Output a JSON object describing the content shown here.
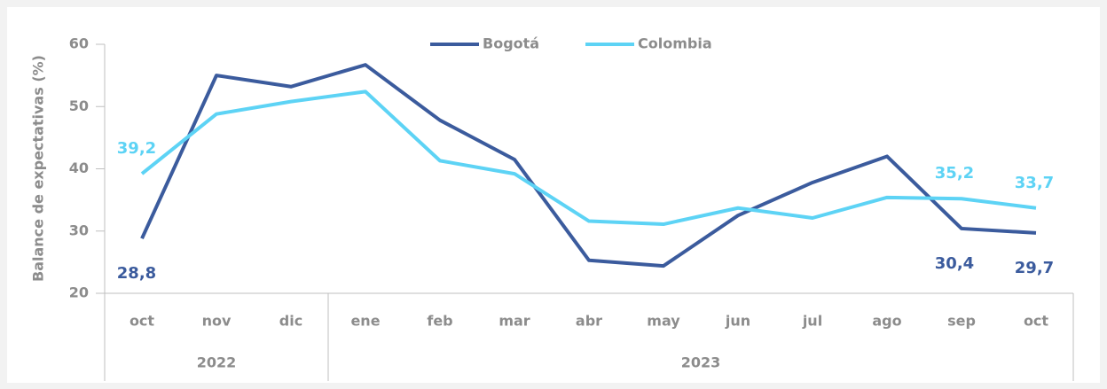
{
  "chart_data": {
    "type": "line",
    "y_axis_label": "Balance de expectativas (%)",
    "categories": [
      "oct",
      "nov",
      "dic",
      "ene",
      "feb",
      "mar",
      "abr",
      "may",
      "jun",
      "jul",
      "ago",
      "sep",
      "oct"
    ],
    "groups": [
      {
        "label": "2022",
        "count": 3
      },
      {
        "label": "2023",
        "count": 10
      }
    ],
    "series": [
      {
        "name": "Bogotá",
        "color": "#3b5b9d",
        "values": [
          28.8,
          55.0,
          53.2,
          56.7,
          47.8,
          41.5,
          25.3,
          24.4,
          32.5,
          37.8,
          42.0,
          30.4,
          29.7
        ],
        "value_labels": [
          "28,8",
          null,
          null,
          null,
          null,
          null,
          null,
          null,
          null,
          null,
          null,
          "30,4",
          "29,7"
        ]
      },
      {
        "name": "Colombia",
        "color": "#5dd3f5",
        "values": [
          39.2,
          48.8,
          50.8,
          52.4,
          41.3,
          39.2,
          31.6,
          31.1,
          33.7,
          32.1,
          35.4,
          35.2,
          33.7
        ],
        "value_labels": [
          "39,2",
          null,
          null,
          null,
          null,
          null,
          null,
          null,
          null,
          null,
          null,
          "35,2",
          "33,7"
        ]
      }
    ],
    "ylim": [
      20,
      60
    ],
    "yticks": [
      20,
      30,
      40,
      50,
      60
    ],
    "grid": false,
    "legend": "top"
  }
}
